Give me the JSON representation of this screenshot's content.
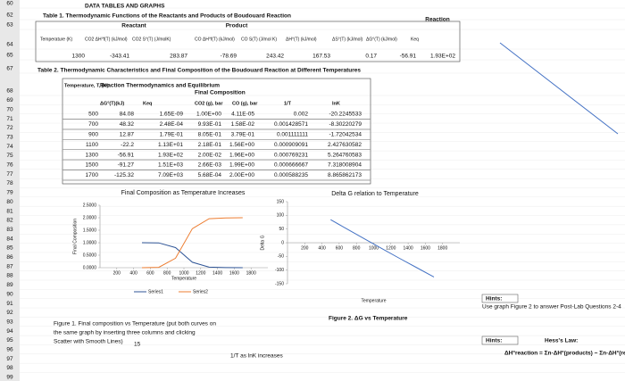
{
  "page_title": "DATA TABLES AND GRAPHS",
  "row_numbers": [
    "60",
    "62",
    "63",
    "64",
    "65",
    "67",
    "68",
    "69",
    "70",
    "71",
    "72",
    "73",
    "74",
    "75",
    "76",
    "77",
    "78",
    "79",
    "80",
    "81",
    "82",
    "83",
    "84",
    "85",
    "86",
    "87",
    "88",
    "89",
    "90",
    "91",
    "92",
    "93",
    "94",
    "95",
    "96",
    "97",
    "98",
    "99"
  ],
  "table1": {
    "title": "Table 1. Thermodynamic Functions of the Reactants and Products of Boudouard Reaction",
    "groups": [
      "Reactant",
      "Product",
      "Reaction"
    ],
    "headers": [
      "Temperature (K)",
      "CO2 ΔH°f(T) (kJ/mol)",
      "CO2 S°(T) (J/molK)",
      "CO ΔH°f(T) (kJ/mol)",
      "CO S(T) (J/mol K)",
      "ΔH°(T) (kJ/mol)",
      "ΔS°(T) (kJ/mol)",
      "ΔG°(T) (kJ/mol)",
      "Keq"
    ],
    "row": [
      "1300",
      "-343.41",
      "283.87",
      "-78.69",
      "243.42",
      "167.53",
      "0.17",
      "-56.91",
      "1.93E+02"
    ]
  },
  "table2": {
    "title": "Table 2. Thermodynamic Characteristics and Final Composition of the Boudouard Reaction at Different Temperatures",
    "groups": [
      "Reaction Thermodynamics and Equilibrium",
      "Final Composition"
    ],
    "headers": [
      "Temperature, T, (K)",
      "ΔG°(T)(kJ)",
      "Keq",
      "CO2 (g), bar",
      "CO (g), bar",
      "1/T",
      "lnK"
    ],
    "rows": [
      [
        "500",
        "84.08",
        "1.65E-09",
        "1.00E+00",
        "4.11E-05",
        "0.002",
        "-20.2245533"
      ],
      [
        "700",
        "48.32",
        "2.48E-04",
        "9.93E-01",
        "1.58E-02",
        "0.001428571",
        "-8.30220279"
      ],
      [
        "900",
        "12.87",
        "1.79E-01",
        "8.05E-01",
        "3.79E-01",
        "0.001111111",
        "-1.72042534"
      ],
      [
        "1100",
        "-22.2",
        "1.13E+01",
        "2.18E-01",
        "1.56E+00",
        "0.000909091",
        "2.427630582"
      ],
      [
        "1300",
        "-56.91",
        "1.93E+02",
        "2.00E-02",
        "1.96E+00",
        "0.000769231",
        "5.264760583"
      ],
      [
        "1500",
        "-91.27",
        "1.51E+03",
        "2.66E-03",
        "1.99E+00",
        "0.000666667",
        "7.318008904"
      ],
      [
        "1700",
        "-125.32",
        "7.09E+03",
        "5.68E-04",
        "2.00E+00",
        "0.000588235",
        "8.865862173"
      ]
    ]
  },
  "charts": [
    {
      "type": "line",
      "title": "Final Composition as Temperature Increases",
      "y_label": "Final Composition",
      "x_label": "Temperature",
      "x": [
        500,
        700,
        900,
        1100,
        1300,
        1500,
        1700
      ],
      "xlim": [
        0,
        2000
      ],
      "xticks": [
        200,
        400,
        600,
        800,
        1000,
        1200,
        1400,
        1600,
        1800
      ],
      "ylim": [
        0,
        2.5
      ],
      "yticks": [
        {
          "value": 0,
          "label": "0.0000"
        },
        {
          "value": 0.5,
          "label": "0.5000"
        },
        {
          "value": 1,
          "label": "1.0000"
        },
        {
          "value": 1.5,
          "label": "1.5000"
        },
        {
          "value": 2,
          "label": "2.0000"
        },
        {
          "value": 2.5,
          "label": "2.5000"
        }
      ],
      "series": [
        {
          "name": "Series1",
          "color": "#2f5597",
          "values": [
            1.0,
            0.993,
            0.805,
            0.218,
            0.02,
            0.00266,
            0.000568
          ]
        },
        {
          "name": "Series2",
          "color": "#ed7d31",
          "values": [
            4.11e-05,
            0.0158,
            0.379,
            1.56,
            1.96,
            1.99,
            2.0
          ]
        }
      ]
    },
    {
      "type": "line",
      "title": "Delta G relation to Temperature",
      "y_label": "Delta G",
      "x_label": "Temperature",
      "x": [
        500,
        700,
        900,
        1100,
        1300,
        1500,
        1700
      ],
      "xlim": [
        0,
        2000
      ],
      "xticks": [
        200,
        400,
        600,
        800,
        1000,
        1200,
        1400,
        1600,
        1800
      ],
      "ylim": [
        -150,
        150
      ],
      "yticks": [
        -150,
        -100,
        -50,
        0,
        50,
        100,
        150
      ],
      "series": [
        {
          "color": "#4472c4",
          "values": [
            84.08,
            48.32,
            12.87,
            -22.2,
            -56.91,
            -91.27,
            -125.32
          ]
        }
      ]
    }
  ],
  "notes": {
    "figure1": [
      "Figure 1. Final composition vs Temperature (put both curves on",
      "the same graph by inserting three columns and clicking",
      "Scatter with Smooth Lines)"
    ],
    "figure2": "Figure 2. ΔG vs Temperature",
    "cell_15": "15",
    "trend": "1/T as lnK increases",
    "hints1_label": "Hints:",
    "hints1_text": "Use graph Figure 2 to answer Post-Lab Questions 2-4",
    "hints2_label": "Hints:",
    "hess_label": "Hess's Law:",
    "hess_formula": "ΔH°reaction = Σn·ΔH°(products) − Σn·ΔH°(reactants)"
  }
}
